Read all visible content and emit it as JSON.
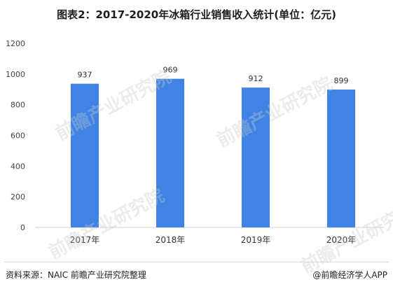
{
  "chart_data": {
    "type": "bar",
    "title": "图表2：2017-2020年冰箱行业销售收入统计(单位：亿元)",
    "categories": [
      "2017年",
      "2018年",
      "2019年",
      "2020年"
    ],
    "values": [
      937,
      969,
      912,
      899
    ],
    "data_labels": [
      "937",
      "969",
      "912",
      "899"
    ],
    "ylim": [
      0,
      1200
    ],
    "yticks": [
      0,
      200,
      400,
      600,
      800,
      1000,
      1200
    ],
    "grid": false,
    "bar_color": "#3f84e5"
  },
  "footer": {
    "source": "资料来源：NAIC 前瞻产业研究院整理",
    "brand": "@前瞻经济学人APP"
  },
  "watermark": {
    "text": "前瞻产业研究院"
  }
}
